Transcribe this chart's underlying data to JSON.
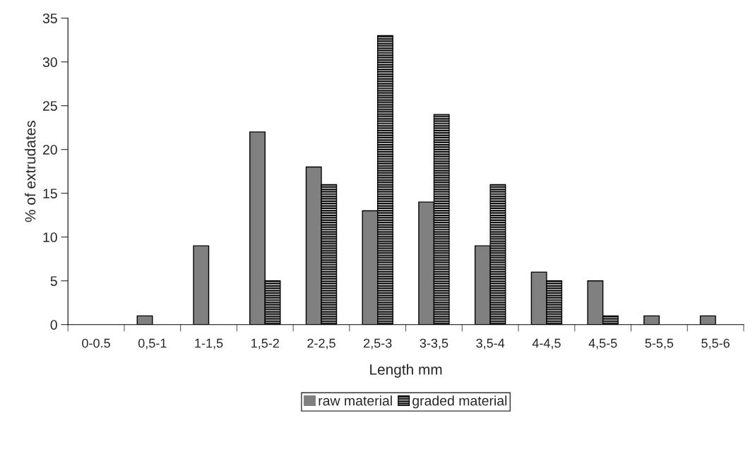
{
  "chart_data": {
    "type": "bar",
    "xlabel": "Length mm",
    "ylabel": "% of extrudates",
    "categories": [
      "0-0.5",
      "0,5-1",
      "1-1,5",
      "1,5-2",
      "2-2,5",
      "2,5-3",
      "3-3,5",
      "3,5-4",
      "4-4,5",
      "4,5-5",
      "5-5,5",
      "5,5-6"
    ],
    "series": [
      {
        "name": "raw material",
        "color": "#808080",
        "values": [
          0,
          1,
          9,
          22,
          18,
          13,
          14,
          9,
          6,
          5,
          1,
          1
        ]
      },
      {
        "name": "graded material",
        "color": "#000000",
        "values": [
          0,
          0,
          0,
          5,
          16,
          33,
          24,
          16,
          5,
          1,
          0,
          0
        ]
      }
    ],
    "ylim": [
      0,
      35
    ],
    "yticks": [
      0,
      5,
      10,
      15,
      20,
      25,
      30,
      35
    ],
    "grid": false,
    "legend": "bottom"
  }
}
